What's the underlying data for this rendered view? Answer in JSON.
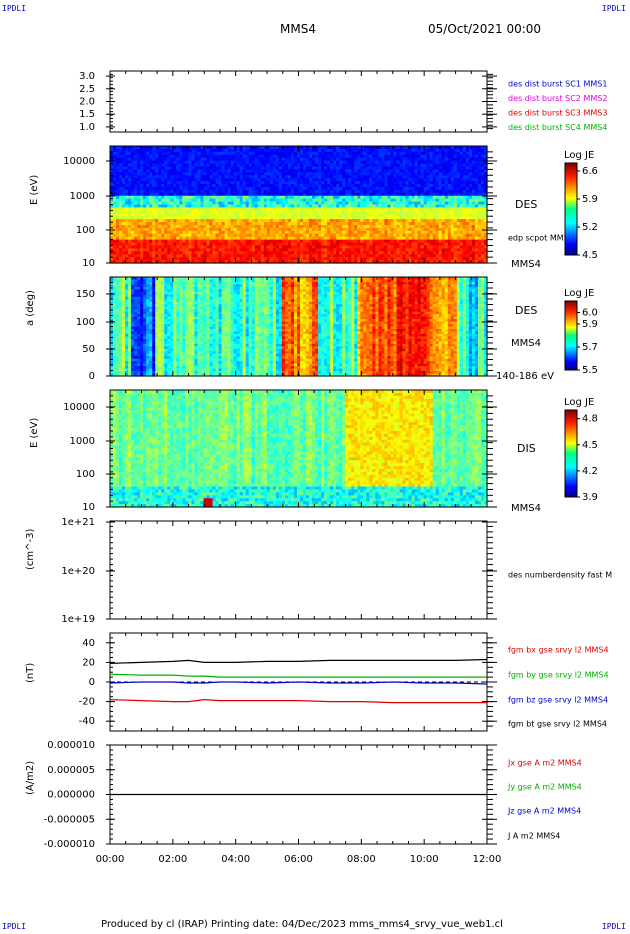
{
  "corners": {
    "top_left": "IPDLI",
    "top_right": "IPDLI",
    "bottom_left": "IPDLI",
    "bottom_right": "IPDLI"
  },
  "header": {
    "spacecraft": "MMS4",
    "date": "05/Oct/2021 00:00"
  },
  "footer": {
    "text": "Produced by cl (IRAP)   Printing date: 04/Dec/2023   mms_mms4_srvy_vue_web1.cl"
  },
  "colors": {
    "black": "#000000",
    "blue": "#0000d0",
    "magenta": "#e000e0",
    "red": "#e00000",
    "green": "#00b000"
  },
  "chart_data": [
    {
      "type": "line",
      "panel": "des dist burst SC",
      "x_ticks": [
        "00:00",
        "02:00",
        "04:00",
        "06:00",
        "08:00",
        "10:00",
        "12:00"
      ],
      "y_ticks": [
        "3.0",
        "2.5",
        "2.0",
        "1.5",
        "1.0"
      ],
      "ylim": [
        0.8,
        3.2
      ],
      "series": [
        {
          "name": "des dist burst SC1 MMS1",
          "color": "#0000d0"
        },
        {
          "name": "des dist burst SC2 MMS2",
          "color": "#e000e0"
        },
        {
          "name": "des dist burst SC3 MMS3",
          "color": "#e00000"
        },
        {
          "name": "des dist burst SC4 MMS4",
          "color": "#00b000"
        }
      ]
    },
    {
      "type": "heatmap",
      "panel": "DES energy",
      "ylabel": "E (eV)",
      "y_ticks": [
        "10000",
        "1000",
        "100",
        "10"
      ],
      "ylim": [
        10,
        30000
      ],
      "label_right": "DES",
      "overlay_label": "edp scpot MMS4",
      "sc_label": "MMS4",
      "colorbar": {
        "title": "Log JE",
        "ticks": [
          "6.6",
          "5.9",
          "5.2",
          "4.5"
        ],
        "range": [
          4.5,
          6.8
        ]
      }
    },
    {
      "type": "heatmap",
      "panel": "DES pitch angle",
      "ylabel": "a (deg)",
      "y_ticks": [
        "150",
        "100",
        "50",
        "0"
      ],
      "ylim": [
        0,
        180
      ],
      "label_right": "DES",
      "sc_label": "MMS4",
      "energy_label": "140-186 eV",
      "colorbar": {
        "title": "Log JE",
        "ticks": [
          "6.0",
          "5.9",
          "5.7",
          "5.5"
        ],
        "range": [
          5.5,
          6.1
        ]
      }
    },
    {
      "type": "heatmap",
      "panel": "DIS energy",
      "ylabel": "E (eV)",
      "y_ticks": [
        "10000",
        "1000",
        "100",
        "10"
      ],
      "ylim": [
        10,
        30000
      ],
      "label_right": "DIS",
      "sc_label": "MMS4",
      "colorbar": {
        "title": "Log JE",
        "ticks": [
          "4.8",
          "4.5",
          "4.2",
          "3.9"
        ],
        "range": [
          3.9,
          4.9
        ]
      }
    },
    {
      "type": "line",
      "panel": "density",
      "ylabel": "(cm^-3)",
      "y_ticks": [
        "1e+21",
        "1e+20",
        "1e+19"
      ],
      "ylim": [
        1e+19,
        1e+21
      ],
      "series": [
        {
          "name": "des numberdensity fast M",
          "color": "#000000"
        }
      ]
    },
    {
      "type": "line",
      "panel": "magnetic field",
      "ylabel": "(nT)",
      "y_ticks": [
        "40",
        "20",
        "0",
        "-20",
        "-40"
      ],
      "ylim": [
        -50,
        50
      ],
      "x_hours": [
        0,
        1,
        2,
        2.5,
        3,
        3.5,
        4,
        5,
        6,
        7,
        8,
        9,
        10,
        11,
        12
      ],
      "series": [
        {
          "name": "fgm bx gse srvy l2 MMS4",
          "color": "#e00000",
          "values": [
            -18,
            -19,
            -20,
            -20,
            -18,
            -19,
            -19,
            -19,
            -19,
            -20,
            -20,
            -21,
            -21,
            -21,
            -21
          ]
        },
        {
          "name": "fgm by gse srvy l2 MMS4",
          "color": "#00b000",
          "values": [
            8,
            7,
            7,
            6,
            6,
            5,
            5,
            5,
            5,
            5,
            5,
            5,
            5,
            5,
            5
          ]
        },
        {
          "name": "fgm bz gse srvy l2 MMS4",
          "color": "#0000d0",
          "values": [
            -1,
            0,
            0,
            -1,
            -1,
            0,
            0,
            -1,
            0,
            -1,
            -1,
            0,
            -1,
            -1,
            -2
          ]
        },
        {
          "name": "fgm bt gse srvy l2 MMS4",
          "color": "#000000",
          "values": [
            19,
            20,
            21,
            22,
            20,
            20,
            20,
            21,
            21,
            22,
            22,
            22,
            22,
            22,
            23
          ]
        }
      ]
    },
    {
      "type": "line",
      "panel": "current density",
      "ylabel": "(A/m2)",
      "y_ticks": [
        "0.000010",
        "0.000005",
        "0.000000",
        "-0.000005",
        "-0.000010"
      ],
      "ylim": [
        -1e-05,
        1e-05
      ],
      "x_ticks": [
        "00:00",
        "02:00",
        "04:00",
        "06:00",
        "08:00",
        "10:00",
        "12:00"
      ],
      "series": [
        {
          "name": "Jx gse A m2 MMS4",
          "color": "#e00000"
        },
        {
          "name": "Jy gse A m2 MMS4",
          "color": "#00b000"
        },
        {
          "name": "Jz gse A m2 MMS4",
          "color": "#0000d0"
        },
        {
          "name": "J A m2 MMS4",
          "color": "#000000",
          "values": [
            0,
            0
          ]
        }
      ]
    }
  ]
}
